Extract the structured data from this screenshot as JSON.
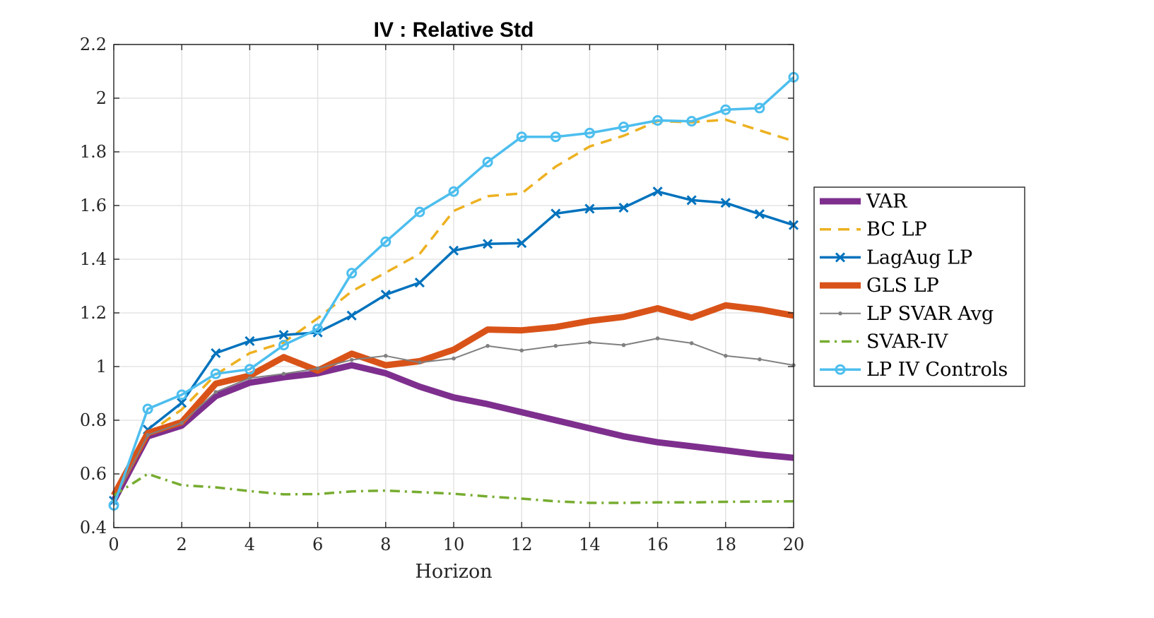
{
  "chart_data": {
    "type": "line",
    "title": "IV : Relative Std",
    "xlabel": "Horizon",
    "ylabel": "",
    "xlim": [
      0,
      20
    ],
    "ylim": [
      0.4,
      2.2
    ],
    "x_ticks": [
      "0",
      "2",
      "4",
      "6",
      "8",
      "10",
      "12",
      "14",
      "16",
      "18",
      "20"
    ],
    "y_ticks": [
      "0.4",
      "0.6",
      "0.8",
      "1",
      "1.2",
      "1.4",
      "1.6",
      "1.8",
      "2",
      "2.2"
    ],
    "grid": true,
    "legend_position": "outside-right",
    "x": [
      0,
      1,
      2,
      3,
      4,
      5,
      6,
      7,
      8,
      9,
      10,
      11,
      12,
      13,
      14,
      15,
      16,
      17,
      18,
      19,
      20
    ],
    "series": [
      {
        "name": "VAR",
        "color": "#7e2f8e",
        "line_style": "solid",
        "marker": "none",
        "line_width": 9,
        "values": [
          0.5,
          0.74,
          0.78,
          0.89,
          0.94,
          0.96,
          0.975,
          1.005,
          0.975,
          0.925,
          0.885,
          0.86,
          0.83,
          0.8,
          0.77,
          0.74,
          0.718,
          0.703,
          0.688,
          0.672,
          0.66
        ]
      },
      {
        "name": "BC LP",
        "color": "#edb120",
        "line_style": "dashed",
        "marker": "none",
        "line_width": 3.5,
        "values": [
          0.5,
          0.75,
          0.84,
          0.97,
          1.05,
          1.09,
          1.18,
          1.28,
          1.35,
          1.42,
          1.58,
          1.635,
          1.645,
          1.745,
          1.82,
          1.86,
          1.915,
          1.91,
          1.92,
          1.88,
          1.84
        ]
      },
      {
        "name": "LagAug LP",
        "color": "#0072bd",
        "line_style": "solid",
        "marker": "x",
        "line_width": 3.5,
        "values": [
          0.5,
          0.765,
          0.865,
          1.05,
          1.095,
          1.118,
          1.127,
          1.19,
          1.268,
          1.313,
          1.432,
          1.457,
          1.46,
          1.57,
          1.588,
          1.592,
          1.652,
          1.62,
          1.61,
          1.568,
          1.527
        ]
      },
      {
        "name": "GLS LP",
        "color": "#d95319",
        "line_style": "solid",
        "marker": "none",
        "line_width": 9,
        "values": [
          0.52,
          0.752,
          0.793,
          0.936,
          0.966,
          1.035,
          0.985,
          1.048,
          1.005,
          1.02,
          1.063,
          1.138,
          1.135,
          1.147,
          1.17,
          1.185,
          1.217,
          1.182,
          1.228,
          1.213,
          1.19
        ]
      },
      {
        "name": "LP SVAR Avg",
        "color": "#808080",
        "line_style": "solid",
        "marker": "dot",
        "line_width": 2,
        "values": [
          0.5,
          0.745,
          0.79,
          0.905,
          0.957,
          0.973,
          0.993,
          1.025,
          1.04,
          1.015,
          1.03,
          1.077,
          1.06,
          1.077,
          1.09,
          1.08,
          1.105,
          1.087,
          1.04,
          1.027,
          1.005
        ]
      },
      {
        "name": "SVAR-IV",
        "color": "#77ac30",
        "line_style": "dashdot",
        "marker": "none",
        "line_width": 3.5,
        "values": [
          0.52,
          0.6,
          0.558,
          0.55,
          0.536,
          0.524,
          0.525,
          0.535,
          0.538,
          0.532,
          0.526,
          0.516,
          0.508,
          0.498,
          0.492,
          0.492,
          0.494,
          0.494,
          0.496,
          0.497,
          0.498
        ]
      },
      {
        "name": "LP IV Controls",
        "color": "#4dbeee",
        "line_style": "solid",
        "marker": "o",
        "line_width": 3.5,
        "values": [
          0.483,
          0.842,
          0.895,
          0.973,
          0.99,
          1.08,
          1.14,
          1.348,
          1.465,
          1.576,
          1.652,
          1.762,
          1.856,
          1.856,
          1.87,
          1.893,
          1.917,
          1.914,
          1.957,
          1.963,
          2.078
        ]
      }
    ]
  }
}
